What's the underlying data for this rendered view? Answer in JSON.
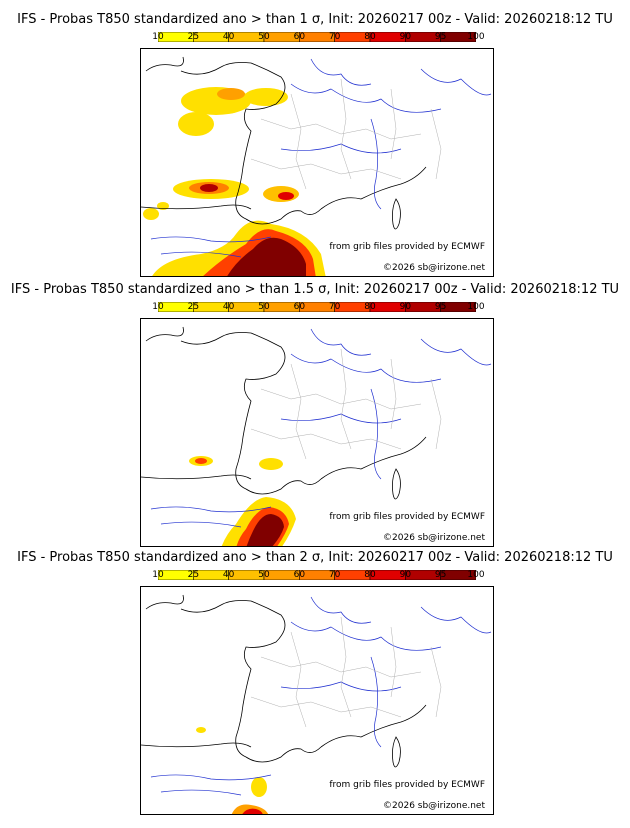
{
  "colorbar": {
    "ticks": [
      "10",
      "25",
      "40",
      "50",
      "60",
      "70",
      "80",
      "90",
      "95",
      "100"
    ],
    "colors": [
      "#ffff00",
      "#ffe000",
      "#ffc000",
      "#ffa000",
      "#ff8000",
      "#ff4000",
      "#e00000",
      "#b00000",
      "#800000"
    ]
  },
  "panels": [
    {
      "title": "IFS - Probas T850  standardized ano > than 1 σ, Init: 20260217 00z - Valid: 20260218:12 TU",
      "credit_source": "from grib files provided by ECMWF",
      "credit_copyright": "©2026 sb@irizone.net"
    },
    {
      "title": "IFS - Probas T850  standardized ano > than 1.5 σ, Init: 20260217 00z - Valid: 20260218:12 TU",
      "credit_source": "from grib files provided by ECMWF",
      "credit_copyright": "©2026 sb@irizone.net"
    },
    {
      "title": "IFS - Probas T850  standardized ano > than 2 σ, Init: 20260217 00z - Valid: 20260218:12 TU",
      "credit_source": "from grib files provided by ECMWF",
      "credit_copyright": "©2026 sb@irizone.net"
    }
  ]
}
